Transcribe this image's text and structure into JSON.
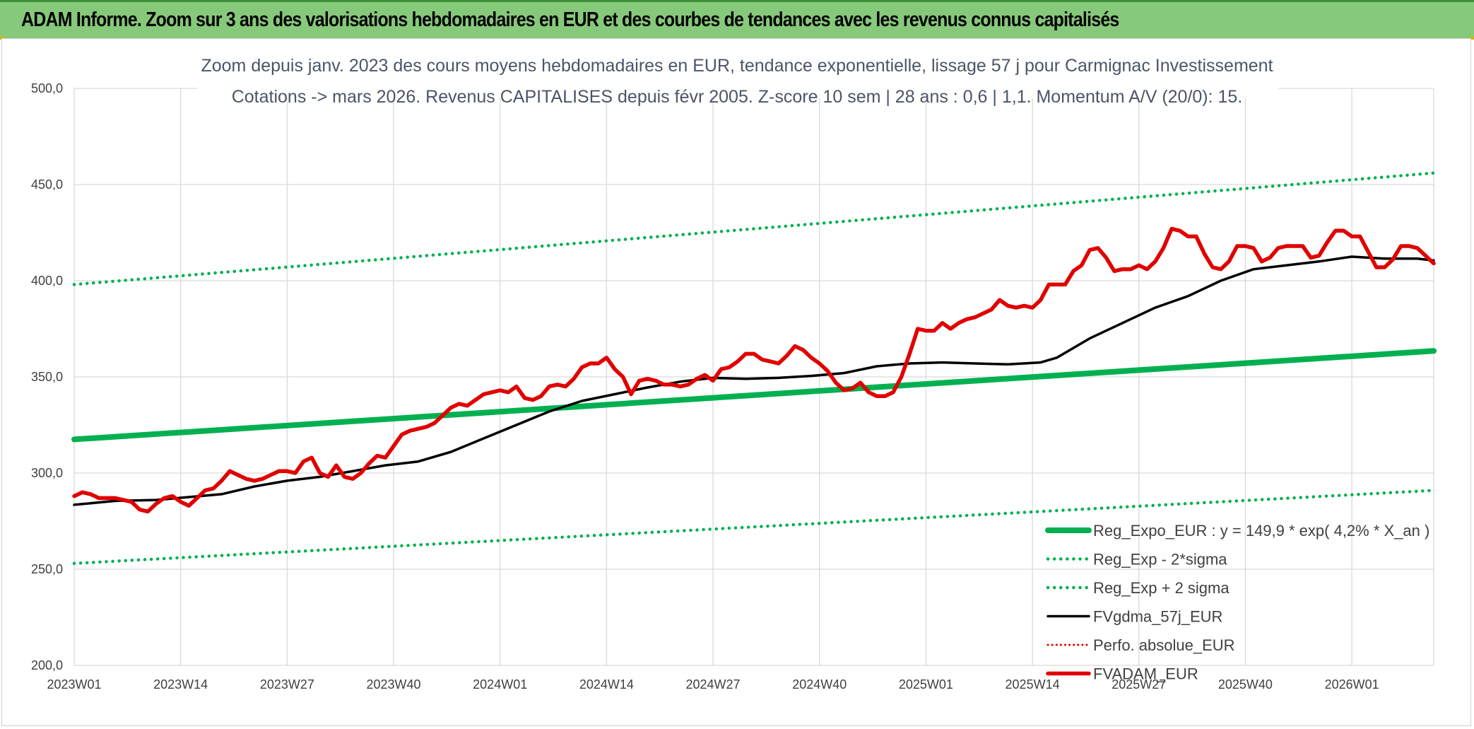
{
  "header": {
    "title": "ADAM Informe. Zoom sur 3 ans des valorisations hebdomadaires en EUR et des courbes de tendances avec les revenus connus capitalisés"
  },
  "colors": {
    "banner": "#86c97a",
    "reg_expo": "#00b050",
    "sigma": "#00b050",
    "fvgdma": "#000000",
    "perfo": "#e00000",
    "fvadam": "#e00000",
    "grid": "#d9d9d9"
  },
  "chart_data": {
    "type": "line",
    "title_line1": "Zoom depuis janv. 2023 des cours moyens hebdomadaires en EUR, tendance exponentielle, lissage 57 j pour Carmignac Investissement",
    "title_line2": "Cotations -> mars 2026. Revenus CAPITALISES depuis févr 2005. Z-score 10 sem | 28 ans : 0,6 | 1,1. Momentum A/V (20/0): 15.",
    "ylim": [
      200,
      500
    ],
    "y_ticks": [
      "200,0",
      "250,0",
      "300,0",
      "350,0",
      "400,0",
      "450,0",
      "500,0"
    ],
    "y_tick_values": [
      200,
      250,
      300,
      350,
      400,
      450,
      500
    ],
    "x_range_weeks": [
      0,
      166
    ],
    "x_ticks": [
      "2023W01",
      "2023W14",
      "2023W27",
      "2023W40",
      "2024W01",
      "2024W14",
      "2024W27",
      "2024W40",
      "2025W01",
      "2025W14",
      "2025W27",
      "2025W40",
      "2026W01"
    ],
    "x_tick_weeks": [
      0,
      13,
      26,
      39,
      52,
      65,
      78,
      91,
      104,
      117,
      130,
      143,
      156
    ],
    "legend": [
      {
        "key": "reg_expo",
        "label": "Reg_Expo_EUR : y = 149,9 * exp( 4,2% * X_an )",
        "style": "thick"
      },
      {
        "key": "sigma_minus",
        "label": "Reg_Exp - 2*sigma",
        "style": "dotted-green"
      },
      {
        "key": "sigma_plus",
        "label": "Reg_Exp + 2 sigma",
        "style": "dotted-green"
      },
      {
        "key": "fvgdma",
        "label": "FVgdma_57j_EUR",
        "style": "solid-black"
      },
      {
        "key": "perfo",
        "label": "Perfo. absolue_EUR",
        "style": "dotted-red"
      },
      {
        "key": "fvadam",
        "label": "FVADAM_EUR",
        "style": "thick-red"
      }
    ],
    "series": [
      {
        "name": "Reg_Expo_EUR",
        "key": "reg_expo",
        "x": [
          0,
          166
        ],
        "values": [
          317.5,
          363.5
        ]
      },
      {
        "name": "Reg_Exp + 2 sigma",
        "key": "sigma_plus",
        "x": [
          0,
          166
        ],
        "values": [
          398.0,
          456.0
        ]
      },
      {
        "name": "Reg_Exp - 2*sigma",
        "key": "sigma_minus",
        "x": [
          0,
          166
        ],
        "values": [
          253.0,
          291.0
        ]
      },
      {
        "name": "FVgdma_57j_EUR",
        "key": "fvgdma",
        "x": [
          0,
          5,
          10,
          14,
          18,
          22,
          26,
          30,
          34,
          38,
          42,
          46,
          50,
          54,
          58,
          62,
          66,
          70,
          74,
          78,
          82,
          86,
          90,
          94,
          98,
          102,
          106,
          110,
          114,
          118,
          120,
          124,
          128,
          132,
          136,
          140,
          144,
          148,
          152,
          156,
          160,
          164,
          166
        ],
        "values": [
          283.5,
          285.5,
          286.0,
          287.5,
          289.0,
          293.0,
          296.0,
          298.0,
          301.0,
          304.0,
          306.0,
          311.0,
          318.0,
          325.0,
          332.0,
          337.5,
          341.0,
          344.5,
          347.5,
          349.5,
          349.0,
          349.5,
          350.5,
          352.0,
          355.5,
          357.0,
          357.5,
          357.0,
          356.5,
          357.5,
          360.0,
          370.0,
          378.0,
          386.0,
          392.0,
          400.0,
          406.0,
          408.0,
          410.0,
          412.5,
          411.5,
          411.5,
          410.5
        ]
      },
      {
        "name": "FVADAM_EUR",
        "key": "fvadam",
        "x": [
          0,
          1,
          2,
          3,
          4,
          5,
          6,
          7,
          8,
          9,
          10,
          11,
          12,
          13,
          14,
          15,
          16,
          17,
          18,
          19,
          20,
          21,
          22,
          23,
          24,
          25,
          26,
          27,
          28,
          29,
          30,
          31,
          32,
          33,
          34,
          35,
          36,
          37,
          38,
          39,
          40,
          41,
          42,
          43,
          44,
          45,
          46,
          47,
          48,
          49,
          50,
          51,
          52,
          53,
          54,
          55,
          56,
          57,
          58,
          59,
          60,
          61,
          62,
          63,
          64,
          65,
          66,
          67,
          68,
          69,
          70,
          71,
          72,
          73,
          74,
          75,
          76,
          77,
          78,
          79,
          80,
          81,
          82,
          83,
          84,
          85,
          86,
          87,
          88,
          89,
          90,
          91,
          92,
          93,
          94,
          95,
          96,
          97,
          98,
          99,
          100,
          101,
          102,
          103,
          104,
          105,
          106,
          107,
          108,
          109,
          110,
          111,
          112,
          113,
          114,
          115,
          116,
          117,
          118,
          119,
          120,
          121,
          122,
          123,
          124,
          125,
          126,
          127,
          128,
          129,
          130,
          131,
          132,
          133,
          134,
          135,
          136,
          137,
          138,
          139,
          140,
          141,
          142,
          143,
          144,
          145,
          146,
          147,
          148,
          149,
          150,
          151,
          152,
          153,
          154,
          155,
          156,
          157,
          158,
          159,
          160,
          161,
          162,
          163,
          164,
          165,
          166
        ],
        "values": [
          288,
          290,
          289,
          287,
          287,
          287,
          286,
          285,
          281,
          280,
          284,
          287,
          288,
          285,
          283,
          287,
          291,
          292,
          296,
          301,
          299,
          297,
          296,
          297,
          299,
          301,
          301,
          300,
          306,
          308,
          300,
          298,
          304,
          298,
          297,
          300,
          305,
          309,
          308,
          314,
          320,
          322,
          323,
          324,
          326,
          330,
          334,
          336,
          335,
          338,
          341,
          342,
          343,
          342,
          345,
          339,
          338,
          340,
          345,
          346,
          345,
          349,
          355,
          357,
          357,
          360,
          354,
          350,
          341,
          348,
          349,
          348,
          346,
          346,
          345,
          346,
          349,
          351,
          348,
          354,
          355,
          358,
          362,
          362,
          359,
          358,
          357,
          361,
          366,
          364,
          360,
          357,
          353,
          347,
          343,
          344,
          347,
          342,
          340,
          340,
          342,
          350,
          362,
          375,
          374,
          374,
          378,
          375,
          378,
          380,
          381,
          383,
          385,
          390,
          387,
          386,
          387,
          386,
          390,
          398,
          398,
          398,
          405,
          408,
          416,
          417,
          412,
          405,
          406,
          406,
          408,
          406,
          410,
          417,
          427,
          426,
          423,
          423,
          414,
          407,
          406,
          410,
          418,
          418,
          417,
          410,
          412,
          417,
          418,
          418,
          418,
          412,
          413,
          420,
          426,
          426,
          423,
          423,
          415,
          407,
          407,
          411,
          418,
          418,
          417,
          413,
          409
        ]
      }
    ]
  }
}
